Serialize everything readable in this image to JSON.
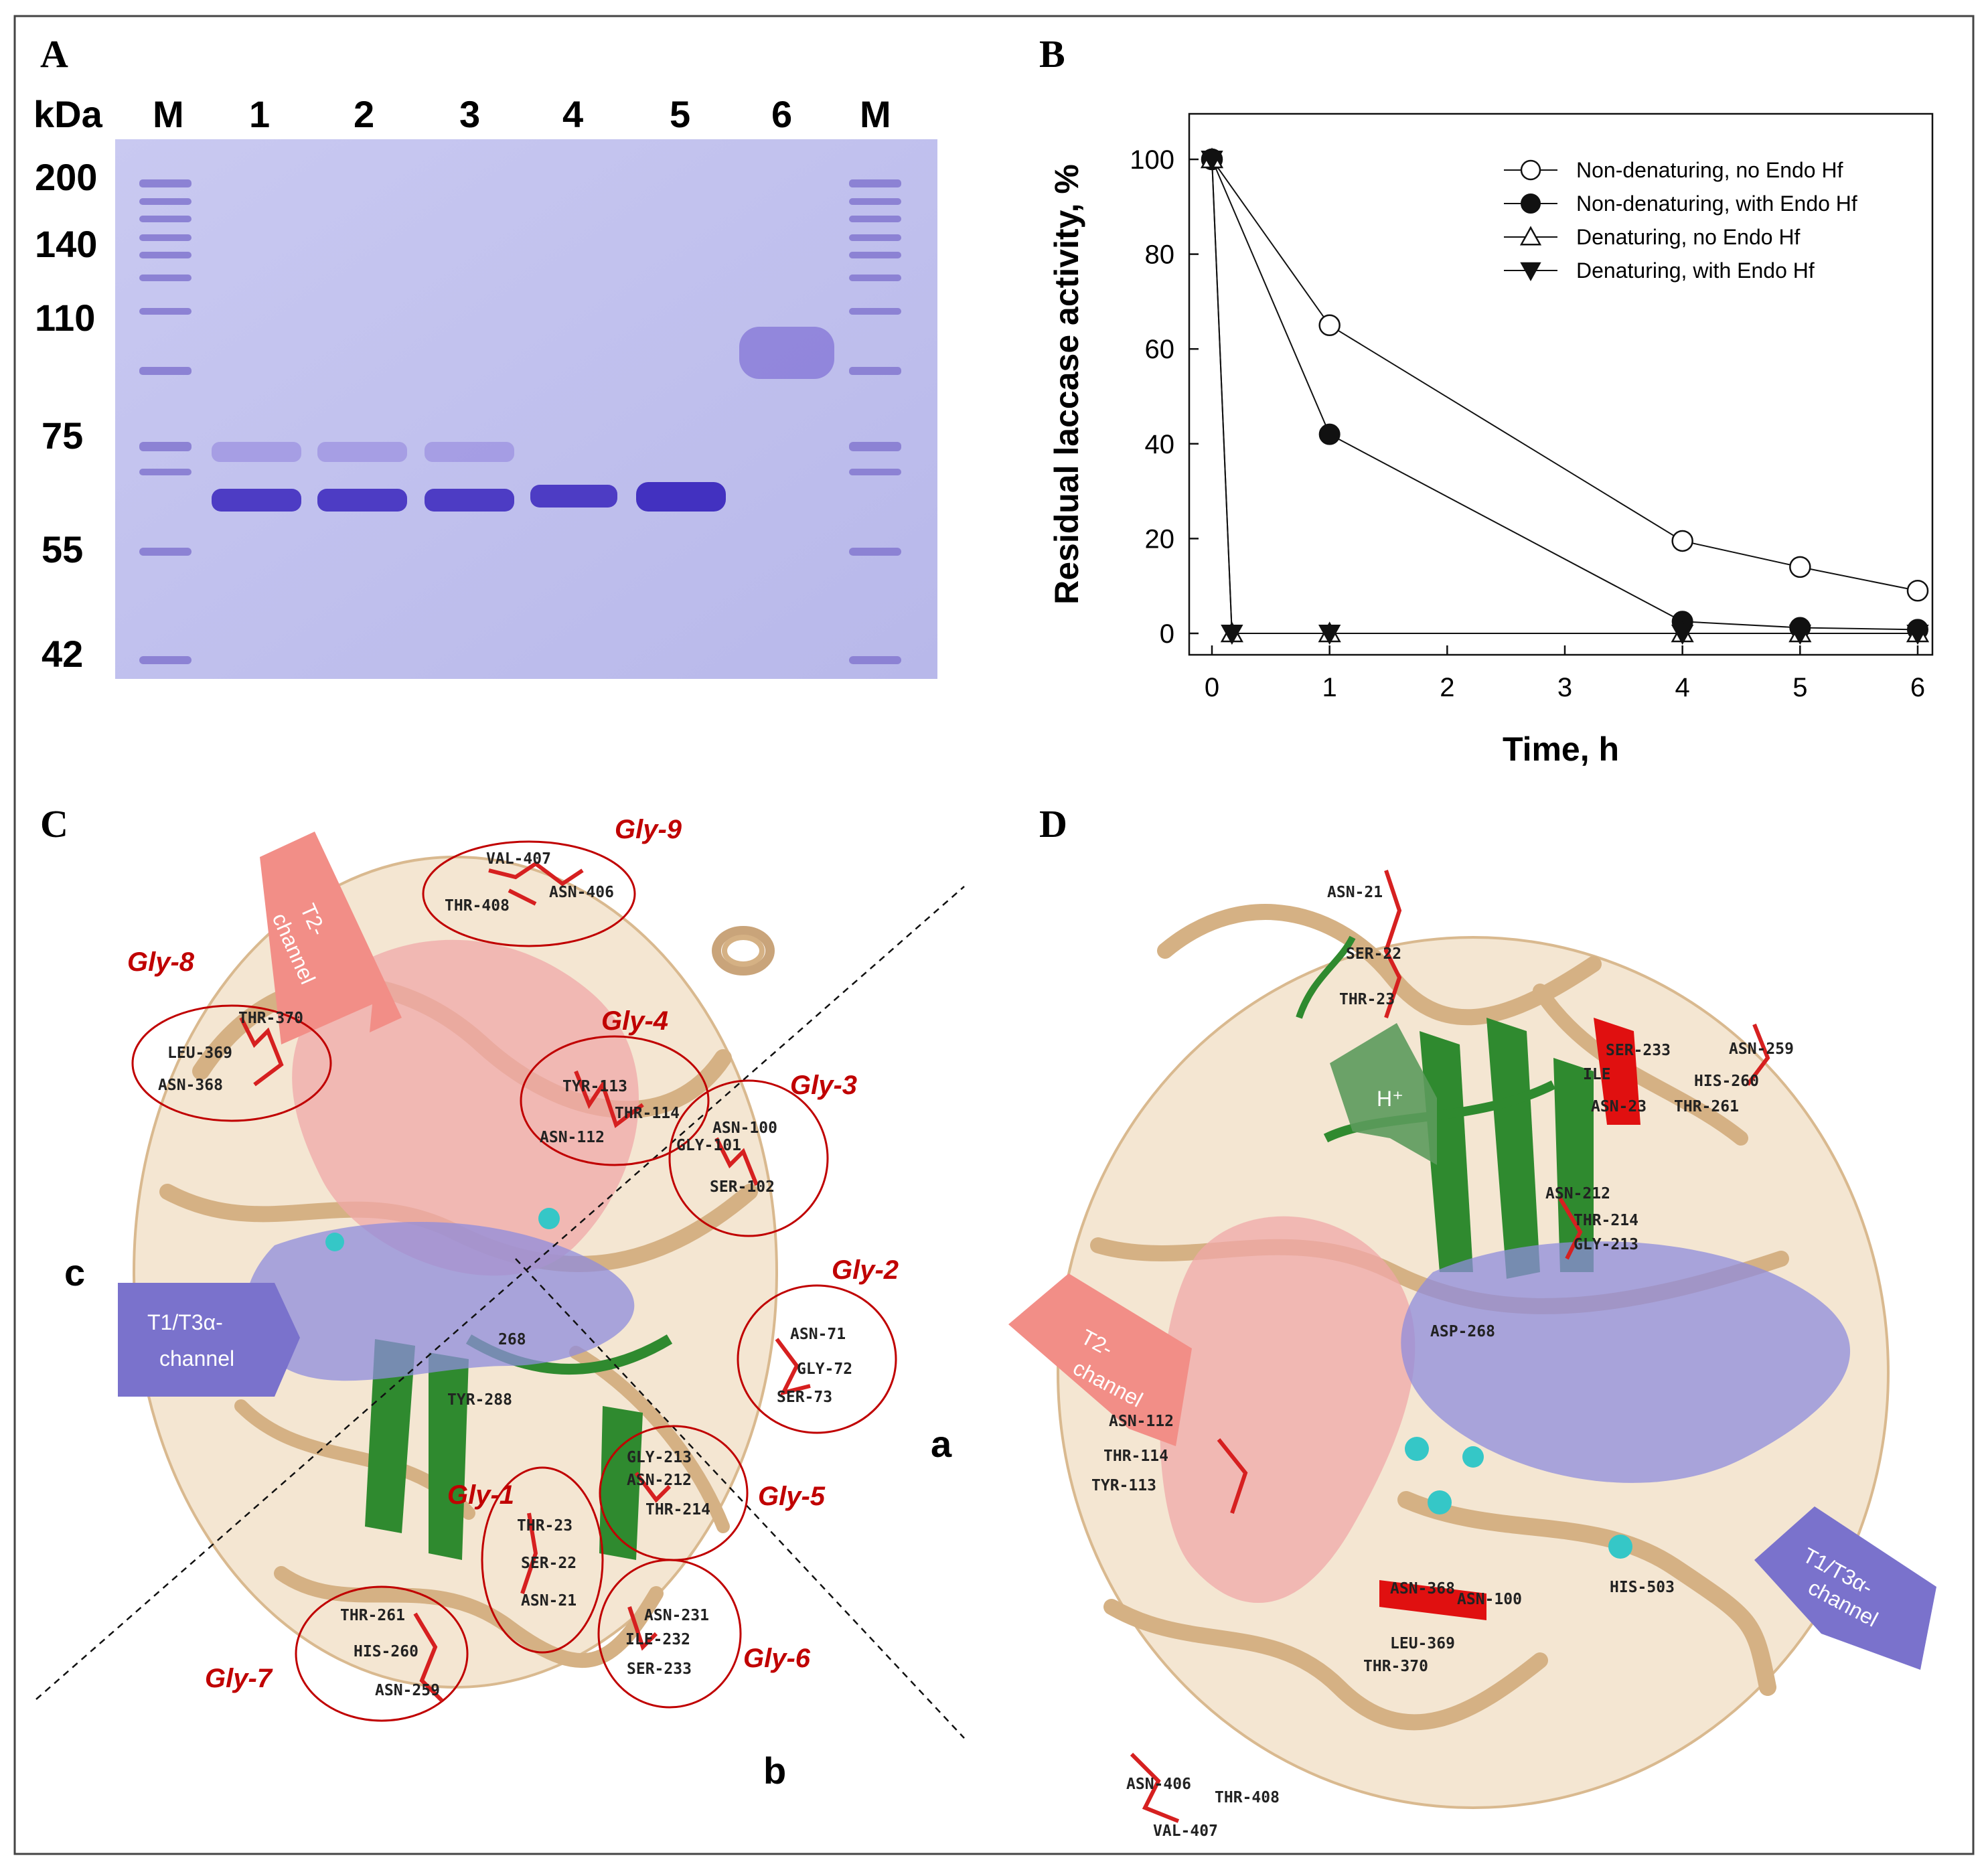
{
  "panelA": {
    "letter": "A",
    "header": {
      "kda": "kDa",
      "lanes": [
        "M",
        "1",
        "2",
        "3",
        "4",
        "5",
        "6",
        "M"
      ]
    },
    "markers": [
      "200",
      "140",
      "110",
      "75",
      "55",
      "42"
    ]
  },
  "panelB": {
    "letter": "B",
    "chart_data": {
      "type": "line",
      "xlabel": "Time, h",
      "ylabel": "Residual laccase activity, %",
      "xlim": [
        0,
        6
      ],
      "ylim": [
        0,
        100
      ],
      "xticks": [
        "0",
        "1",
        "2",
        "3",
        "4",
        "5",
        "6"
      ],
      "yticks": [
        "0",
        "20",
        "40",
        "60",
        "80",
        "100"
      ],
      "legend_position": "top-right",
      "series": [
        {
          "name": "Non-denaturing, no Endo Hf",
          "marker": "circle-open",
          "x": [
            0,
            1,
            4,
            5,
            6
          ],
          "y": [
            100,
            65,
            19.5,
            14,
            9
          ]
        },
        {
          "name": "Non-denaturing, with Endo Hf",
          "marker": "circle-filled",
          "x": [
            0,
            1,
            4,
            5,
            6
          ],
          "y": [
            100,
            42,
            2.5,
            1.2,
            0.8
          ]
        },
        {
          "name": "Denaturing, no Endo Hf",
          "marker": "triangle-up-open",
          "x": [
            0,
            0.17,
            1,
            4,
            5,
            6
          ],
          "y": [
            100,
            0,
            0,
            0,
            0,
            0
          ]
        },
        {
          "name": "Denaturing, with Endo Hf",
          "marker": "triangle-down-filled",
          "x": [
            0,
            0.17,
            1,
            4,
            5,
            6
          ],
          "y": [
            100,
            0,
            0,
            0,
            0,
            0
          ]
        }
      ]
    }
  },
  "panelC": {
    "letter": "C",
    "glycosylation_sites": [
      {
        "label": "Gly-1",
        "residues": [
          "THR-23",
          "SER-22",
          "ASN-21"
        ]
      },
      {
        "label": "Gly-2",
        "residues": [
          "ASN-71",
          "GLY-72",
          "SER-73"
        ]
      },
      {
        "label": "Gly-3",
        "residues": [
          "ASN-100",
          "GLY-101",
          "SER-102"
        ]
      },
      {
        "label": "Gly-4",
        "residues": [
          "TYR-113",
          "THR-114",
          "ASN-112"
        ]
      },
      {
        "label": "Gly-5",
        "residues": [
          "GLY-213",
          "ASN-212",
          "THR-214"
        ]
      },
      {
        "label": "Gly-6",
        "residues": [
          "ASN-231",
          "ILE-232",
          "SER-233"
        ]
      },
      {
        "label": "Gly-7",
        "residues": [
          "THR-261",
          "HIS-260",
          "ASN-259"
        ]
      },
      {
        "label": "Gly-8",
        "residues": [
          "THR-370",
          "LEU-369",
          "ASN-368"
        ]
      },
      {
        "label": "Gly-9",
        "residues": [
          "VAL-407",
          "THR-408",
          "ASN-406"
        ]
      }
    ],
    "other_residues": [
      "TYR-288",
      "268"
    ],
    "channels": {
      "t2": [
        "T2-",
        "channel"
      ],
      "t1": [
        "T1/T3α-",
        "channel"
      ]
    },
    "regions": [
      "a",
      "b",
      "c"
    ]
  },
  "panelD": {
    "letter": "D",
    "residues": [
      "ASN-21",
      "SER-22",
      "THR-23",
      "SER-233",
      "ILE",
      "ASN-23",
      "HIS-260",
      "THR-261",
      "ASN-259",
      "ASN-212",
      "THR-214",
      "GLY-213",
      "ASP-268",
      "ASN-112",
      "THR-114",
      "TYR-113",
      "ASN-368",
      "ASN-100",
      "LEU-369",
      "THR-370",
      "ASN-406",
      "THR-408",
      "VAL-407",
      "HIS-503"
    ],
    "channels": {
      "proton": "H⁺",
      "t2": [
        "T2-",
        "channel"
      ],
      "t1": [
        "T1/T3α-",
        "channel"
      ]
    }
  },
  "colors": {
    "gel_bg": "#c3c3ee",
    "band": "#5a48c8",
    "marker_band": "#8a7ed0",
    "ribbon": "#e3c59e",
    "ribbon_dark": "#c9a67a",
    "sheet_green": "#2f8a2f",
    "residue_red": "#d62020",
    "t2_pink": "#f08d88",
    "t1_purple": "#7a72cc",
    "copper": "#35c7c7"
  }
}
